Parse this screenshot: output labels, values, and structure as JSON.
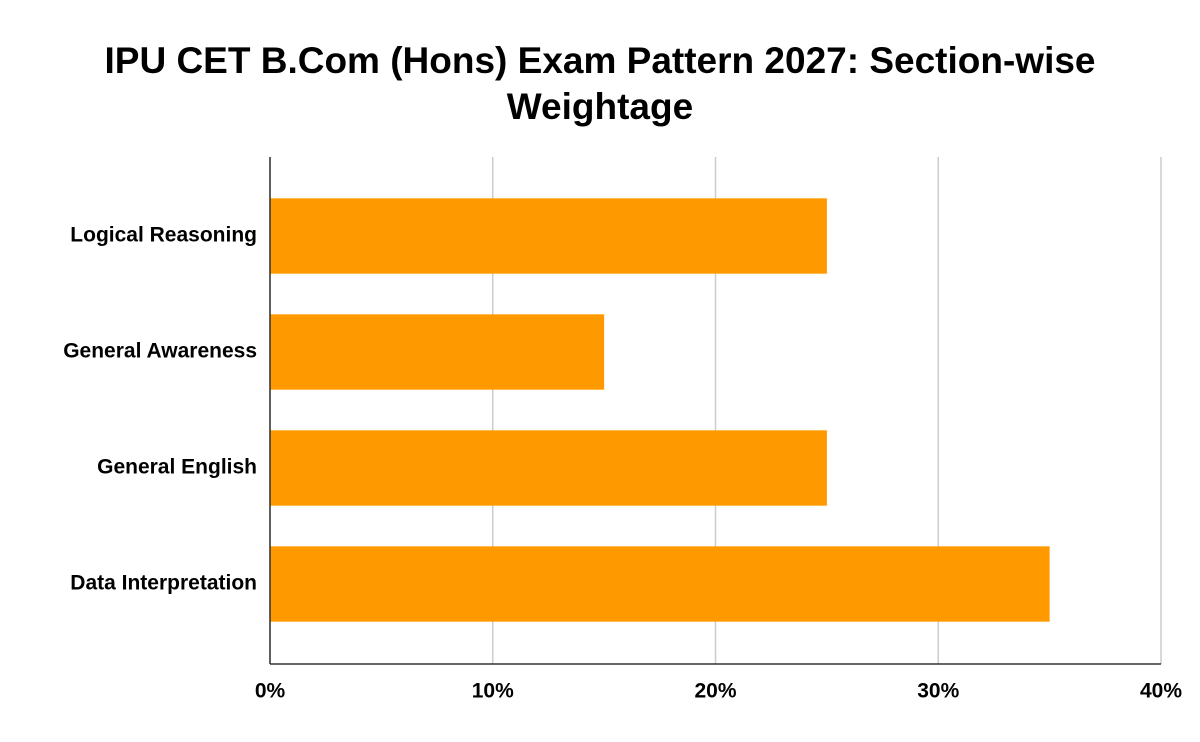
{
  "chart_data": {
    "type": "bar",
    "orientation": "horizontal",
    "title": "IPU CET B.Com (Hons) Exam Pattern 2027: Section-wise Weightage",
    "categories": [
      "Logical Reasoning",
      "General Awareness",
      "General English",
      "Data Interpretation"
    ],
    "values": [
      25,
      15,
      25,
      35
    ],
    "color": "#ff9900",
    "xlim": [
      0,
      40
    ],
    "xticks": [
      {
        "value": 0,
        "label": "0%"
      },
      {
        "value": 10,
        "label": "10%"
      },
      {
        "value": 20,
        "label": "20%"
      },
      {
        "value": 30,
        "label": "30%"
      },
      {
        "value": 40,
        "label": "40%"
      }
    ],
    "grid": true
  }
}
